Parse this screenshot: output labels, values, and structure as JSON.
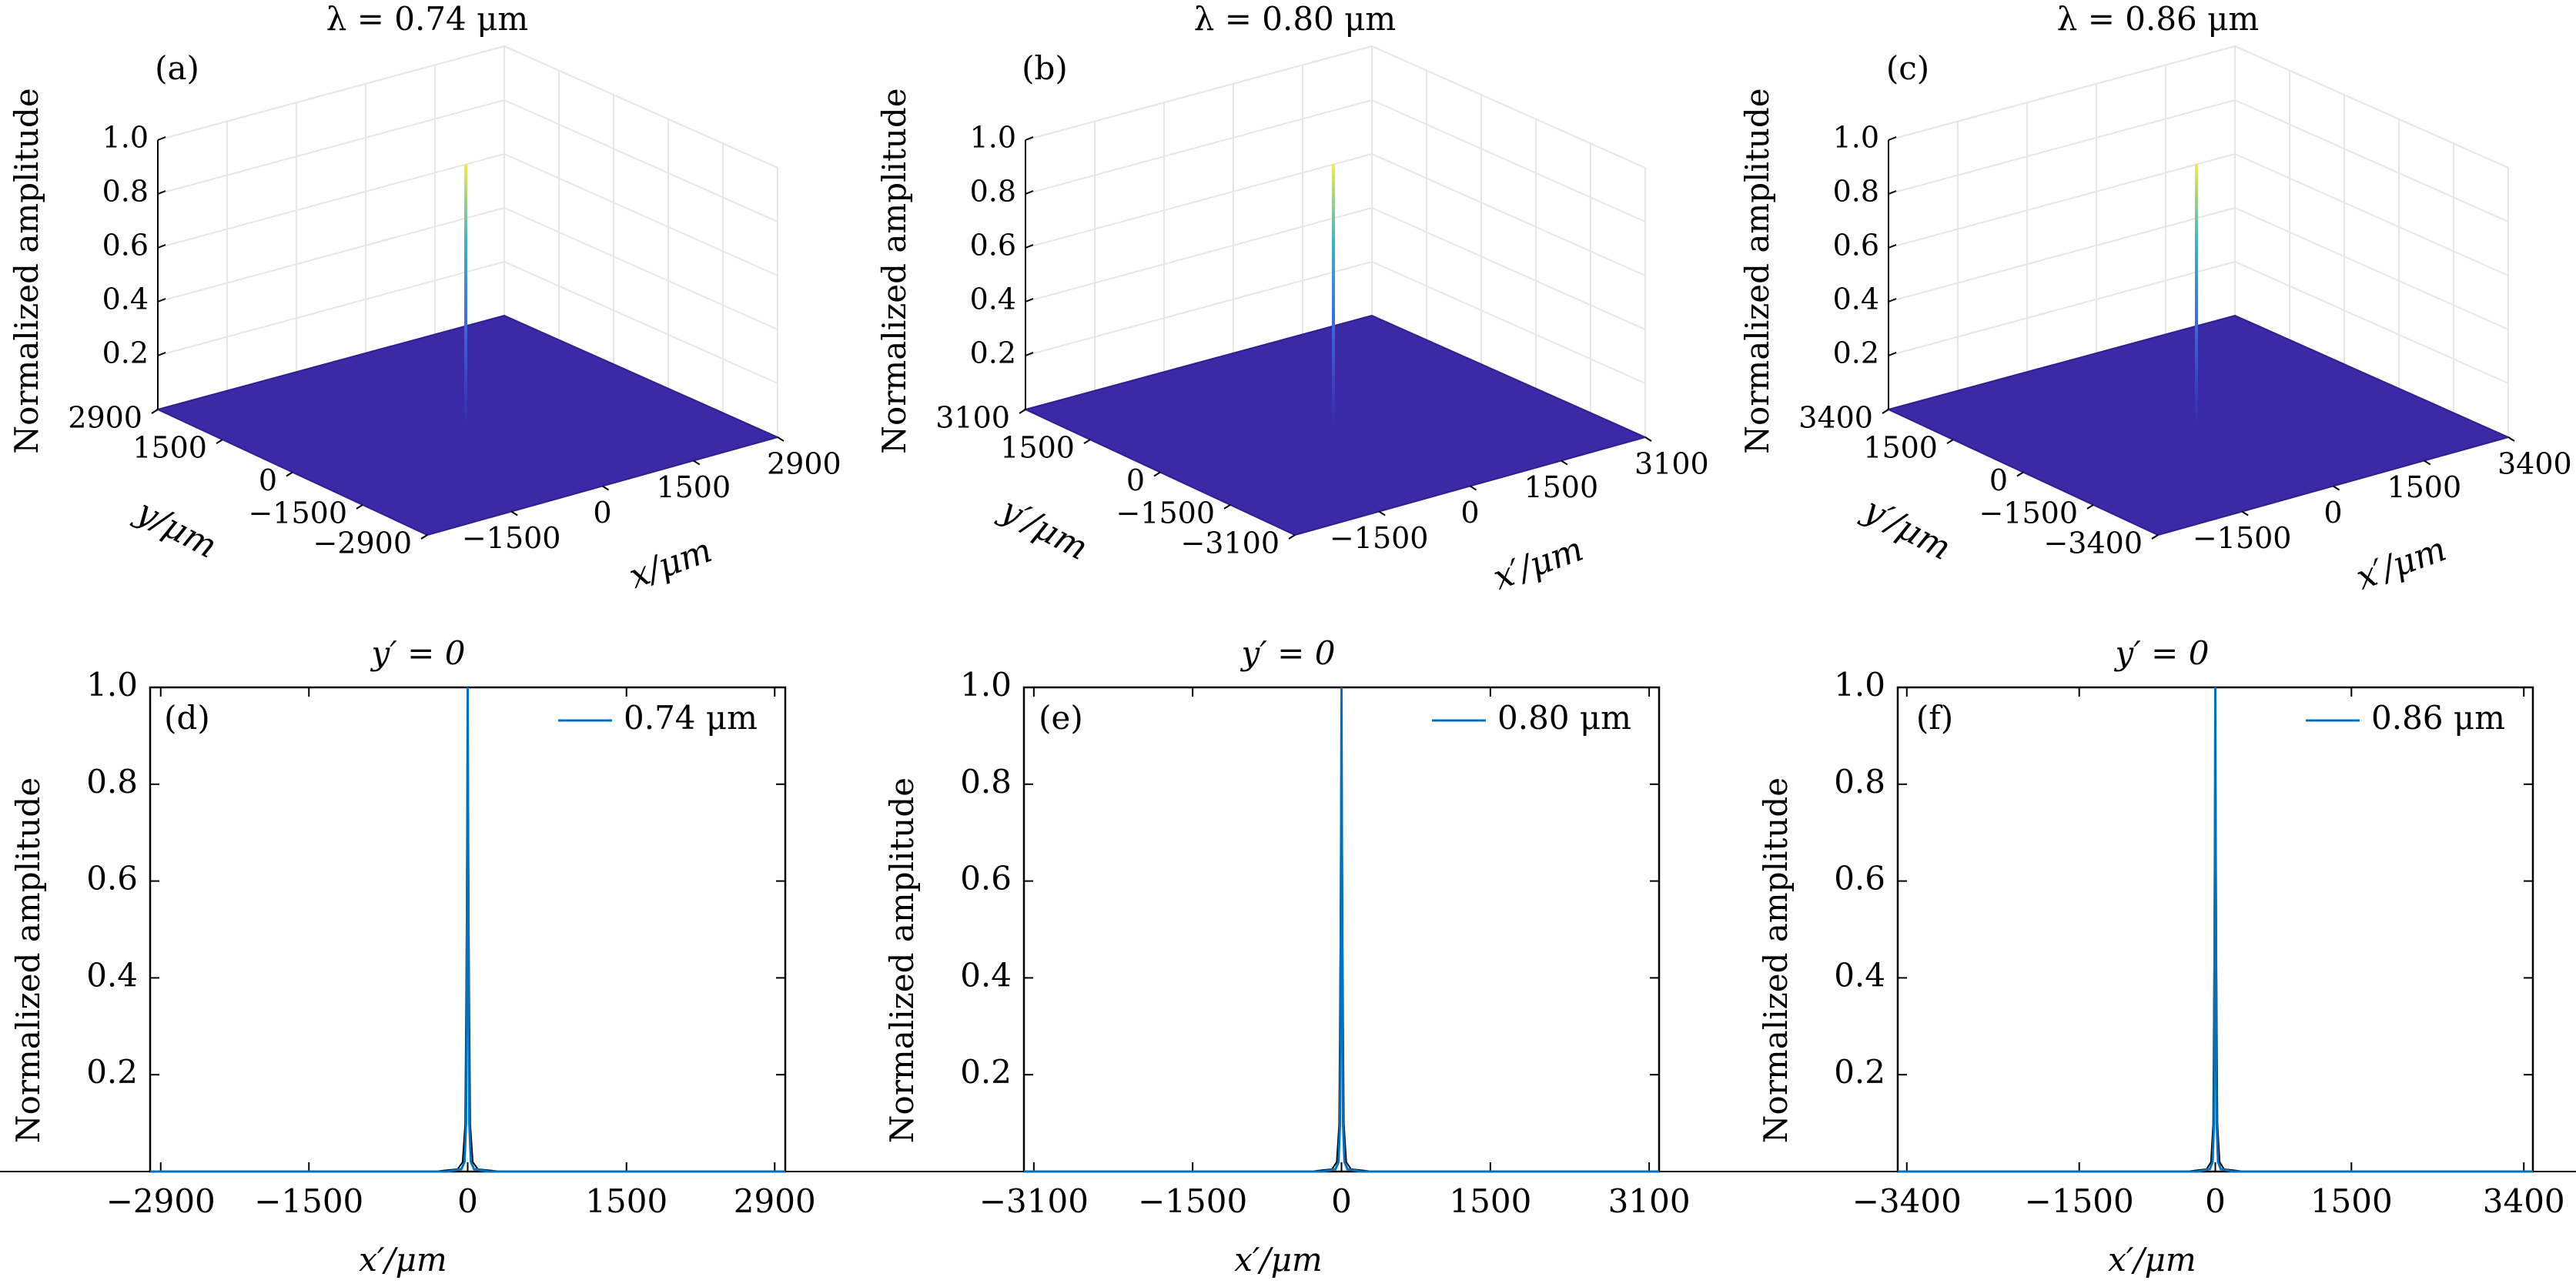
{
  "figure": {
    "colors": {
      "surface": "#3a2aa6",
      "peak_top": "#f6e94a",
      "peak_mid": "#3ab5c6",
      "peak_low": "#3c6be0",
      "line": "#0072bd",
      "grid": "#e6e6e6",
      "axis": "#000000"
    }
  },
  "chart_data": [
    {
      "type": "surface3d",
      "panel": "(a)",
      "title": "λ = 0.74 μm",
      "zlabel": "Normalized amplitude",
      "xlabel": "x/μm",
      "ylabel": "y/μm",
      "z_ticks": [
        "0.2",
        "0.4",
        "0.6",
        "0.8",
        "1.0"
      ],
      "x_ticks": [
        "−1500",
        "0",
        "1500",
        "2900"
      ],
      "y_ticks": [
        "2900",
        "1500",
        "0",
        "−1500",
        "−2900"
      ],
      "xlim": [
        -2900,
        2900
      ],
      "ylim": [
        -2900,
        2900
      ],
      "zlim": [
        0,
        1
      ],
      "peak": {
        "x": 0,
        "y": 0,
        "z": 1.0
      }
    },
    {
      "type": "surface3d",
      "panel": "(b)",
      "title": "λ = 0.80 μm",
      "zlabel": "Normalized amplitude",
      "xlabel": "x′/μm",
      "ylabel": "y′/μm",
      "z_ticks": [
        "0.2",
        "0.4",
        "0.6",
        "0.8",
        "1.0"
      ],
      "x_ticks": [
        "−1500",
        "0",
        "1500",
        "3100"
      ],
      "y_ticks": [
        "3100",
        "1500",
        "0",
        "−1500",
        "−3100"
      ],
      "xlim": [
        -3100,
        3100
      ],
      "ylim": [
        -3100,
        3100
      ],
      "zlim": [
        0,
        1
      ],
      "peak": {
        "x": 0,
        "y": 0,
        "z": 1.0
      }
    },
    {
      "type": "surface3d",
      "panel": "(c)",
      "title": "λ = 0.86 μm",
      "zlabel": "Normalized amplitude",
      "xlabel": "x′/μm",
      "ylabel": "y′/μm",
      "z_ticks": [
        "0.2",
        "0.4",
        "0.6",
        "0.8",
        "1.0"
      ],
      "x_ticks": [
        "−1500",
        "0",
        "1500",
        "3400"
      ],
      "y_ticks": [
        "3400",
        "1500",
        "0",
        "−1500",
        "−3400"
      ],
      "xlim": [
        -3400,
        3400
      ],
      "ylim": [
        -3400,
        3400
      ],
      "zlim": [
        0,
        1
      ],
      "peak": {
        "x": 0,
        "y": 0,
        "z": 1.0
      }
    },
    {
      "type": "line",
      "panel": "(d)",
      "title": "y′ = 0",
      "xlabel": "x′/μm",
      "ylabel": "Normalized amplitude",
      "x_ticks": [
        -2900,
        -1500,
        0,
        1500,
        2900
      ],
      "x_tick_labels": [
        "−2900",
        "−1500",
        "0",
        "1500",
        "2900"
      ],
      "y_ticks": [
        0.2,
        0.4,
        0.6,
        0.8,
        1.0
      ],
      "y_tick_labels": [
        "0.2",
        "0.4",
        "0.6",
        "0.8",
        "1.0"
      ],
      "xlim": [
        -3000,
        3000
      ],
      "ylim": [
        0,
        1
      ],
      "series": [
        {
          "name": "0.74 μm",
          "x": [
            -3000,
            -200,
            -60,
            -30,
            -15,
            -8,
            0,
            8,
            15,
            30,
            60,
            200,
            3000
          ],
          "y": [
            0,
            0,
            0.005,
            0.02,
            0.1,
            0.45,
            1.0,
            0.45,
            0.1,
            0.02,
            0.005,
            0,
            0
          ]
        }
      ]
    },
    {
      "type": "line",
      "panel": "(e)",
      "title": "y′ = 0",
      "xlabel": "x′/μm",
      "ylabel": "Normalized amplitude",
      "x_ticks": [
        -3100,
        -1500,
        0,
        1500,
        3100
      ],
      "x_tick_labels": [
        "−3100",
        "−1500",
        "0",
        "1500",
        "3100"
      ],
      "y_ticks": [
        0.2,
        0.4,
        0.6,
        0.8,
        1.0
      ],
      "y_tick_labels": [
        "0.2",
        "0.4",
        "0.6",
        "0.8",
        "1.0"
      ],
      "xlim": [
        -3200,
        3200
      ],
      "ylim": [
        0,
        1
      ],
      "series": [
        {
          "name": "0.80 μm",
          "x": [
            -3200,
            -200,
            -60,
            -30,
            -15,
            -8,
            0,
            8,
            15,
            30,
            60,
            200,
            3200
          ],
          "y": [
            0,
            0,
            0.005,
            0.02,
            0.1,
            0.45,
            1.0,
            0.45,
            0.1,
            0.02,
            0.005,
            0,
            0
          ]
        }
      ]
    },
    {
      "type": "line",
      "panel": "(f)",
      "title": "y′ = 0",
      "xlabel": "x′/μm",
      "ylabel": "Normalized amplitude",
      "x_ticks": [
        -3400,
        -1500,
        0,
        1500,
        3400
      ],
      "x_tick_labels": [
        "−3400",
        "−1500",
        "0",
        "1500",
        "3400"
      ],
      "y_ticks": [
        0.2,
        0.4,
        0.6,
        0.8,
        1.0
      ],
      "y_tick_labels": [
        "0.2",
        "0.4",
        "0.6",
        "0.8",
        "1.0"
      ],
      "xlim": [
        -3500,
        3500
      ],
      "ylim": [
        0,
        1
      ],
      "series": [
        {
          "name": "0.86 μm",
          "x": [
            -3500,
            -200,
            -60,
            -30,
            -15,
            -8,
            0,
            8,
            15,
            30,
            60,
            200,
            3500
          ],
          "y": [
            0,
            0,
            0.005,
            0.02,
            0.1,
            0.45,
            1.0,
            0.45,
            0.1,
            0.02,
            0.005,
            0,
            0
          ]
        }
      ]
    }
  ]
}
